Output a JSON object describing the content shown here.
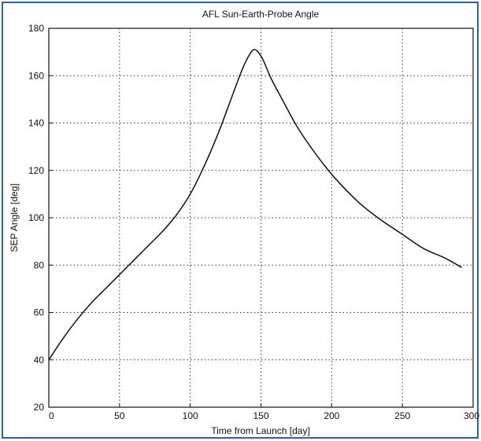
{
  "chart_data": {
    "type": "line",
    "title": "AFL Sun-Earth-Probe Angle",
    "xlabel": "Time from Launch [day]",
    "ylabel": "SEP Angle [deg]",
    "xlim": [
      0,
      300
    ],
    "ylim": [
      20,
      180
    ],
    "xticks": [
      0,
      50,
      100,
      150,
      200,
      250,
      300
    ],
    "yticks": [
      20,
      40,
      60,
      80,
      100,
      120,
      140,
      160,
      180
    ],
    "grid": true,
    "grid_style": "dotted",
    "frame_color": "#2f5fa8",
    "line_color": "#111111",
    "series": [
      {
        "x": [
          0,
          10,
          20,
          30,
          40,
          50,
          60,
          70,
          80,
          90,
          100,
          110,
          120,
          130,
          137,
          142,
          145,
          148,
          152,
          157,
          165,
          175,
          185,
          195,
          205,
          220,
          235,
          250,
          265,
          280,
          292
        ],
        "y": [
          40,
          49,
          57,
          64,
          70,
          76,
          82,
          88,
          94,
          101,
          110,
          122,
          136,
          152,
          163,
          169,
          171,
          170,
          166,
          159,
          150,
          139,
          130,
          122,
          115,
          106,
          99,
          93,
          87,
          83,
          79
        ]
      }
    ]
  }
}
